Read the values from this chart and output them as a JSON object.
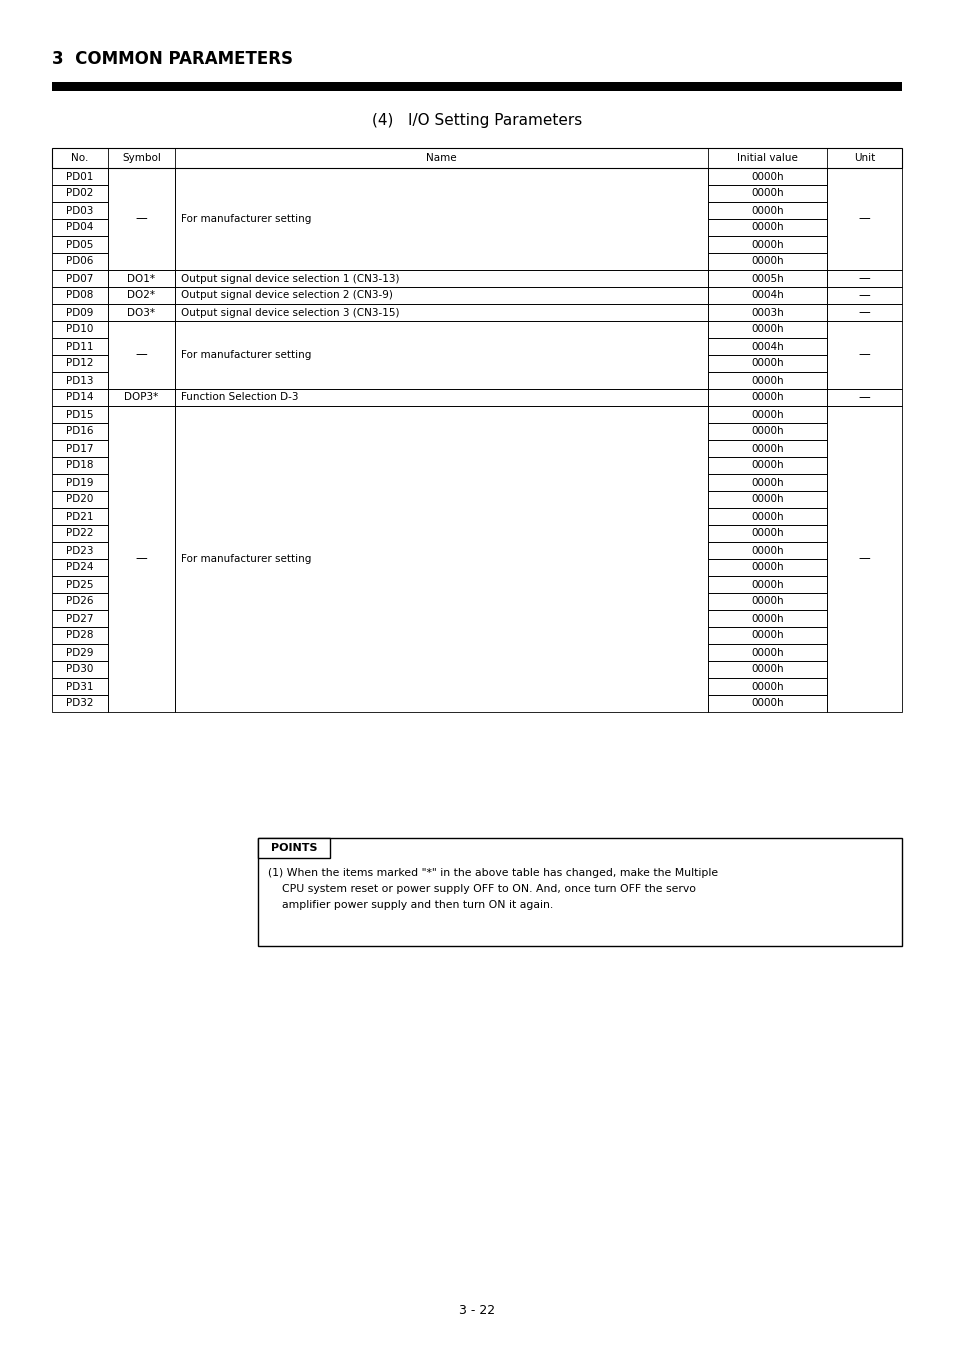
{
  "page_title": "3  COMMON PARAMETERS",
  "section_title": "(4)   I/O Setting Parameters",
  "table_headers": [
    "No.",
    "Symbol",
    "Name",
    "Initial value",
    "Unit"
  ],
  "rows": [
    {
      "no": "PD01",
      "initial": "0000h"
    },
    {
      "no": "PD02",
      "initial": "0000h"
    },
    {
      "no": "PD03",
      "initial": "0000h"
    },
    {
      "no": "PD04",
      "initial": "0000h"
    },
    {
      "no": "PD05",
      "initial": "0000h"
    },
    {
      "no": "PD06",
      "initial": "0000h"
    },
    {
      "no": "PD07",
      "symbol": "DO1*",
      "name": "Output signal device selection 1 (CN3-13)",
      "initial": "0005h",
      "unit": "—"
    },
    {
      "no": "PD08",
      "symbol": "DO2*",
      "name": "Output signal device selection 2 (CN3-9)",
      "initial": "0004h",
      "unit": "—"
    },
    {
      "no": "PD09",
      "symbol": "DO3*",
      "name": "Output signal device selection 3 (CN3-15)",
      "initial": "0003h",
      "unit": "—"
    },
    {
      "no": "PD10",
      "initial": "0000h"
    },
    {
      "no": "PD11",
      "initial": "0004h"
    },
    {
      "no": "PD12",
      "initial": "0000h"
    },
    {
      "no": "PD13",
      "initial": "0000h"
    },
    {
      "no": "PD14",
      "symbol": "DOP3*",
      "name": "Function Selection D-3",
      "initial": "0000h",
      "unit": "—"
    },
    {
      "no": "PD15",
      "initial": "0000h"
    },
    {
      "no": "PD16",
      "initial": "0000h"
    },
    {
      "no": "PD17",
      "initial": "0000h"
    },
    {
      "no": "PD18",
      "initial": "0000h"
    },
    {
      "no": "PD19",
      "initial": "0000h"
    },
    {
      "no": "PD20",
      "initial": "0000h"
    },
    {
      "no": "PD21",
      "initial": "0000h"
    },
    {
      "no": "PD22",
      "initial": "0000h"
    },
    {
      "no": "PD23",
      "initial": "0000h"
    },
    {
      "no": "PD24",
      "initial": "0000h"
    },
    {
      "no": "PD25",
      "initial": "0000h"
    },
    {
      "no": "PD26",
      "initial": "0000h"
    },
    {
      "no": "PD27",
      "initial": "0000h"
    },
    {
      "no": "PD28",
      "initial": "0000h"
    },
    {
      "no": "PD29",
      "initial": "0000h"
    },
    {
      "no": "PD30",
      "initial": "0000h"
    },
    {
      "no": "PD31",
      "initial": "0000h"
    },
    {
      "no": "PD32",
      "initial": "0000h"
    }
  ],
  "merge_groups": [
    {
      "start": 0,
      "end": 5,
      "symbol": "—",
      "name": "For manufacturer setting",
      "unit": "—"
    },
    {
      "start": 9,
      "end": 12,
      "symbol": "—",
      "name": "For manufacturer setting",
      "unit": "—"
    },
    {
      "start": 14,
      "end": 31,
      "symbol": "—",
      "name": "For manufacturer setting",
      "unit": "—"
    }
  ],
  "points_title": "POINTS",
  "points_line1": "(1) When the items marked \"*\" in the above table has changed, make the Multiple",
  "points_line2": "    CPU system reset or power supply OFF to ON. And, once turn OFF the servo",
  "points_line3": "    amplifier power supply and then turn ON it again.",
  "page_number": "3 - 22"
}
